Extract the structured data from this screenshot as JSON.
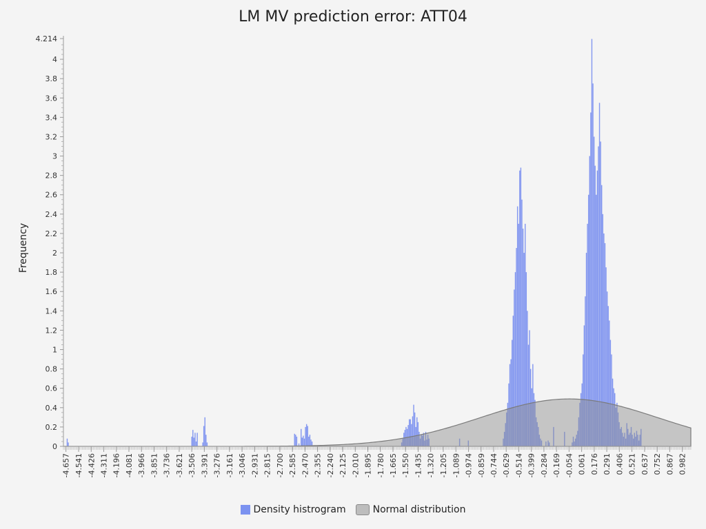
{
  "chart_data": {
    "type": "histogram",
    "title": "LM MV prediction error: ATT04",
    "ylabel": "Frequency",
    "xlabel": "",
    "xlim": [
      -4.68,
      1.06
    ],
    "ylim": [
      0,
      4.214
    ],
    "y_ticks": [
      0,
      0.2,
      0.4,
      0.6,
      0.8,
      1,
      1.2,
      1.4,
      1.6,
      1.8,
      2,
      2.2,
      2.4,
      2.6,
      2.8,
      3,
      3.2,
      3.4,
      3.6,
      3.8,
      4,
      4.214
    ],
    "y_tick_labels": [
      "0",
      "0.2",
      "0.4",
      "0.6",
      "0.8",
      "1",
      "1.2",
      "1.4",
      "1.6",
      "1.8",
      "2",
      "2.2",
      "2.4",
      "2.6",
      "2.8",
      "3",
      "3.2",
      "3.4",
      "3.6",
      "3.8",
      "4",
      "4.214"
    ],
    "x_tick_labels": [
      "-4.657",
      "-4.541",
      "-4.426",
      "-4.311",
      "-4.196",
      "-4.081",
      "-3.966",
      "-3.851",
      "-3.736",
      "-3.621",
      "-3.506",
      "-3.391",
      "-3.276",
      "-3.161",
      "-3.046",
      "-2.931",
      "-2.815",
      "-2.700",
      "-2.585",
      "-2.470",
      "-2.355",
      "-2.240",
      "-2.125",
      "-2.010",
      "-1.895",
      "-1.780",
      "-1.665",
      "-1.550",
      "-1.435",
      "-1.320",
      "-1.205",
      "-1.089",
      "-0.974",
      "-0.859",
      "-0.744",
      "-0.629",
      "-0.514",
      "-0.399",
      "-0.284",
      "-0.169",
      "-0.054",
      "0.061",
      "0.176",
      "0.291",
      "0.406",
      "0.521",
      "0.637",
      "0.752",
      "0.867",
      "0.982"
    ],
    "series": [
      {
        "name": "Density histrogram",
        "color": "#6f86ef",
        "kind": "histogram",
        "bin_width": 0.0115,
        "bins": [
          [
            -4.65,
            0.08
          ],
          [
            -4.64,
            0.04
          ],
          [
            -3.51,
            0.1
          ],
          [
            -3.5,
            0.17
          ],
          [
            -3.49,
            0.09
          ],
          [
            -3.48,
            0.14
          ],
          [
            -3.47,
            0.05
          ],
          [
            -3.46,
            0.14
          ],
          [
            -3.41,
            0.04
          ],
          [
            -3.4,
            0.21
          ],
          [
            -3.39,
            0.3
          ],
          [
            -3.38,
            0.12
          ],
          [
            -3.37,
            0.04
          ],
          [
            -2.57,
            0.13
          ],
          [
            -2.56,
            0.12
          ],
          [
            -2.55,
            0.1
          ],
          [
            -2.53,
            0.03
          ],
          [
            -2.51,
            0.18
          ],
          [
            -2.5,
            0.09
          ],
          [
            -2.49,
            0.11
          ],
          [
            -2.48,
            0.08
          ],
          [
            -2.47,
            0.2
          ],
          [
            -2.46,
            0.23
          ],
          [
            -2.45,
            0.21
          ],
          [
            -2.44,
            0.1
          ],
          [
            -2.43,
            0.12
          ],
          [
            -2.42,
            0.07
          ],
          [
            -2.41,
            0.05
          ],
          [
            -1.59,
            0.04
          ],
          [
            -1.58,
            0.08
          ],
          [
            -1.57,
            0.14
          ],
          [
            -1.56,
            0.17
          ],
          [
            -1.55,
            0.2
          ],
          [
            -1.54,
            0.18
          ],
          [
            -1.53,
            0.22
          ],
          [
            -1.52,
            0.28
          ],
          [
            -1.51,
            0.28
          ],
          [
            -1.5,
            0.23
          ],
          [
            -1.49,
            0.31
          ],
          [
            -1.48,
            0.43
          ],
          [
            -1.47,
            0.35
          ],
          [
            -1.46,
            0.2
          ],
          [
            -1.45,
            0.3
          ],
          [
            -1.44,
            0.25
          ],
          [
            -1.43,
            0.15
          ],
          [
            -1.42,
            0.08
          ],
          [
            -1.41,
            0.12
          ],
          [
            -1.4,
            0.11
          ],
          [
            -1.39,
            0.14
          ],
          [
            -1.38,
            0.06
          ],
          [
            -1.37,
            0.15
          ],
          [
            -1.36,
            0.07
          ],
          [
            -1.35,
            0.12
          ],
          [
            -1.34,
            0.08
          ],
          [
            -1.06,
            0.08
          ],
          [
            -0.98,
            0.06
          ],
          [
            -0.66,
            0.08
          ],
          [
            -0.65,
            0.15
          ],
          [
            -0.64,
            0.24
          ],
          [
            -0.63,
            0.35
          ],
          [
            -0.62,
            0.45
          ],
          [
            -0.61,
            0.65
          ],
          [
            -0.6,
            0.85
          ],
          [
            -0.59,
            0.9
          ],
          [
            -0.58,
            1.1
          ],
          [
            -0.57,
            1.35
          ],
          [
            -0.56,
            1.62
          ],
          [
            -0.55,
            1.8
          ],
          [
            -0.54,
            2.05
          ],
          [
            -0.53,
            2.48
          ],
          [
            -0.52,
            2.3
          ],
          [
            -0.51,
            2.85
          ],
          [
            -0.5,
            2.88
          ],
          [
            -0.49,
            2.55
          ],
          [
            -0.48,
            2.25
          ],
          [
            -0.47,
            2.0
          ],
          [
            -0.46,
            2.3
          ],
          [
            -0.45,
            1.8
          ],
          [
            -0.44,
            1.4
          ],
          [
            -0.43,
            1.05
          ],
          [
            -0.42,
            1.2
          ],
          [
            -0.41,
            0.8
          ],
          [
            -0.4,
            0.6
          ],
          [
            -0.39,
            0.85
          ],
          [
            -0.38,
            0.55
          ],
          [
            -0.37,
            0.48
          ],
          [
            -0.36,
            0.3
          ],
          [
            -0.35,
            0.25
          ],
          [
            -0.34,
            0.2
          ],
          [
            -0.33,
            0.12
          ],
          [
            -0.32,
            0.08
          ],
          [
            -0.31,
            0.06
          ],
          [
            -0.27,
            0.05
          ],
          [
            -0.25,
            0.06
          ],
          [
            -0.24,
            0.04
          ],
          [
            -0.2,
            0.2
          ],
          [
            -0.1,
            0.15
          ],
          [
            -0.03,
            0.04
          ],
          [
            -0.02,
            0.1
          ],
          [
            -0.01,
            0.05
          ],
          [
            0.0,
            0.08
          ],
          [
            0.01,
            0.12
          ],
          [
            0.02,
            0.16
          ],
          [
            0.03,
            0.3
          ],
          [
            0.04,
            0.45
          ],
          [
            0.05,
            0.55
          ],
          [
            0.06,
            0.65
          ],
          [
            0.07,
            0.95
          ],
          [
            0.08,
            1.25
          ],
          [
            0.09,
            1.55
          ],
          [
            0.1,
            2.0
          ],
          [
            0.11,
            2.3
          ],
          [
            0.12,
            2.6
          ],
          [
            0.13,
            3.0
          ],
          [
            0.14,
            3.45
          ],
          [
            0.15,
            4.21
          ],
          [
            0.16,
            3.75
          ],
          [
            0.17,
            3.2
          ],
          [
            0.18,
            2.9
          ],
          [
            0.19,
            2.6
          ],
          [
            0.2,
            2.85
          ],
          [
            0.21,
            3.1
          ],
          [
            0.22,
            3.55
          ],
          [
            0.23,
            3.15
          ],
          [
            0.24,
            2.7
          ],
          [
            0.25,
            2.4
          ],
          [
            0.26,
            2.2
          ],
          [
            0.27,
            2.1
          ],
          [
            0.28,
            1.85
          ],
          [
            0.29,
            1.6
          ],
          [
            0.3,
            1.45
          ],
          [
            0.31,
            1.3
          ],
          [
            0.32,
            1.1
          ],
          [
            0.33,
            0.95
          ],
          [
            0.34,
            0.7
          ],
          [
            0.35,
            0.6
          ],
          [
            0.36,
            0.55
          ],
          [
            0.37,
            0.4
          ],
          [
            0.38,
            0.45
          ],
          [
            0.39,
            0.35
          ],
          [
            0.4,
            0.25
          ],
          [
            0.41,
            0.18
          ],
          [
            0.42,
            0.2
          ],
          [
            0.43,
            0.14
          ],
          [
            0.44,
            0.1
          ],
          [
            0.45,
            0.14
          ],
          [
            0.46,
            0.08
          ],
          [
            0.47,
            0.24
          ],
          [
            0.48,
            0.18
          ],
          [
            0.49,
            0.12
          ],
          [
            0.5,
            0.14
          ],
          [
            0.51,
            0.2
          ],
          [
            0.52,
            0.12
          ],
          [
            0.53,
            0.08
          ],
          [
            0.54,
            0.14
          ],
          [
            0.55,
            0.1
          ],
          [
            0.56,
            0.16
          ],
          [
            0.57,
            0.12
          ],
          [
            0.58,
            0.06
          ],
          [
            0.59,
            0.12
          ],
          [
            0.6,
            0.18
          ]
        ]
      },
      {
        "name": "Normal distribution",
        "color": "#a0a0a0",
        "kind": "normal",
        "mean": -0.054,
        "sd": 0.81,
        "peak": 0.49
      }
    ],
    "legend_position": "bottom-center",
    "grid": false
  }
}
